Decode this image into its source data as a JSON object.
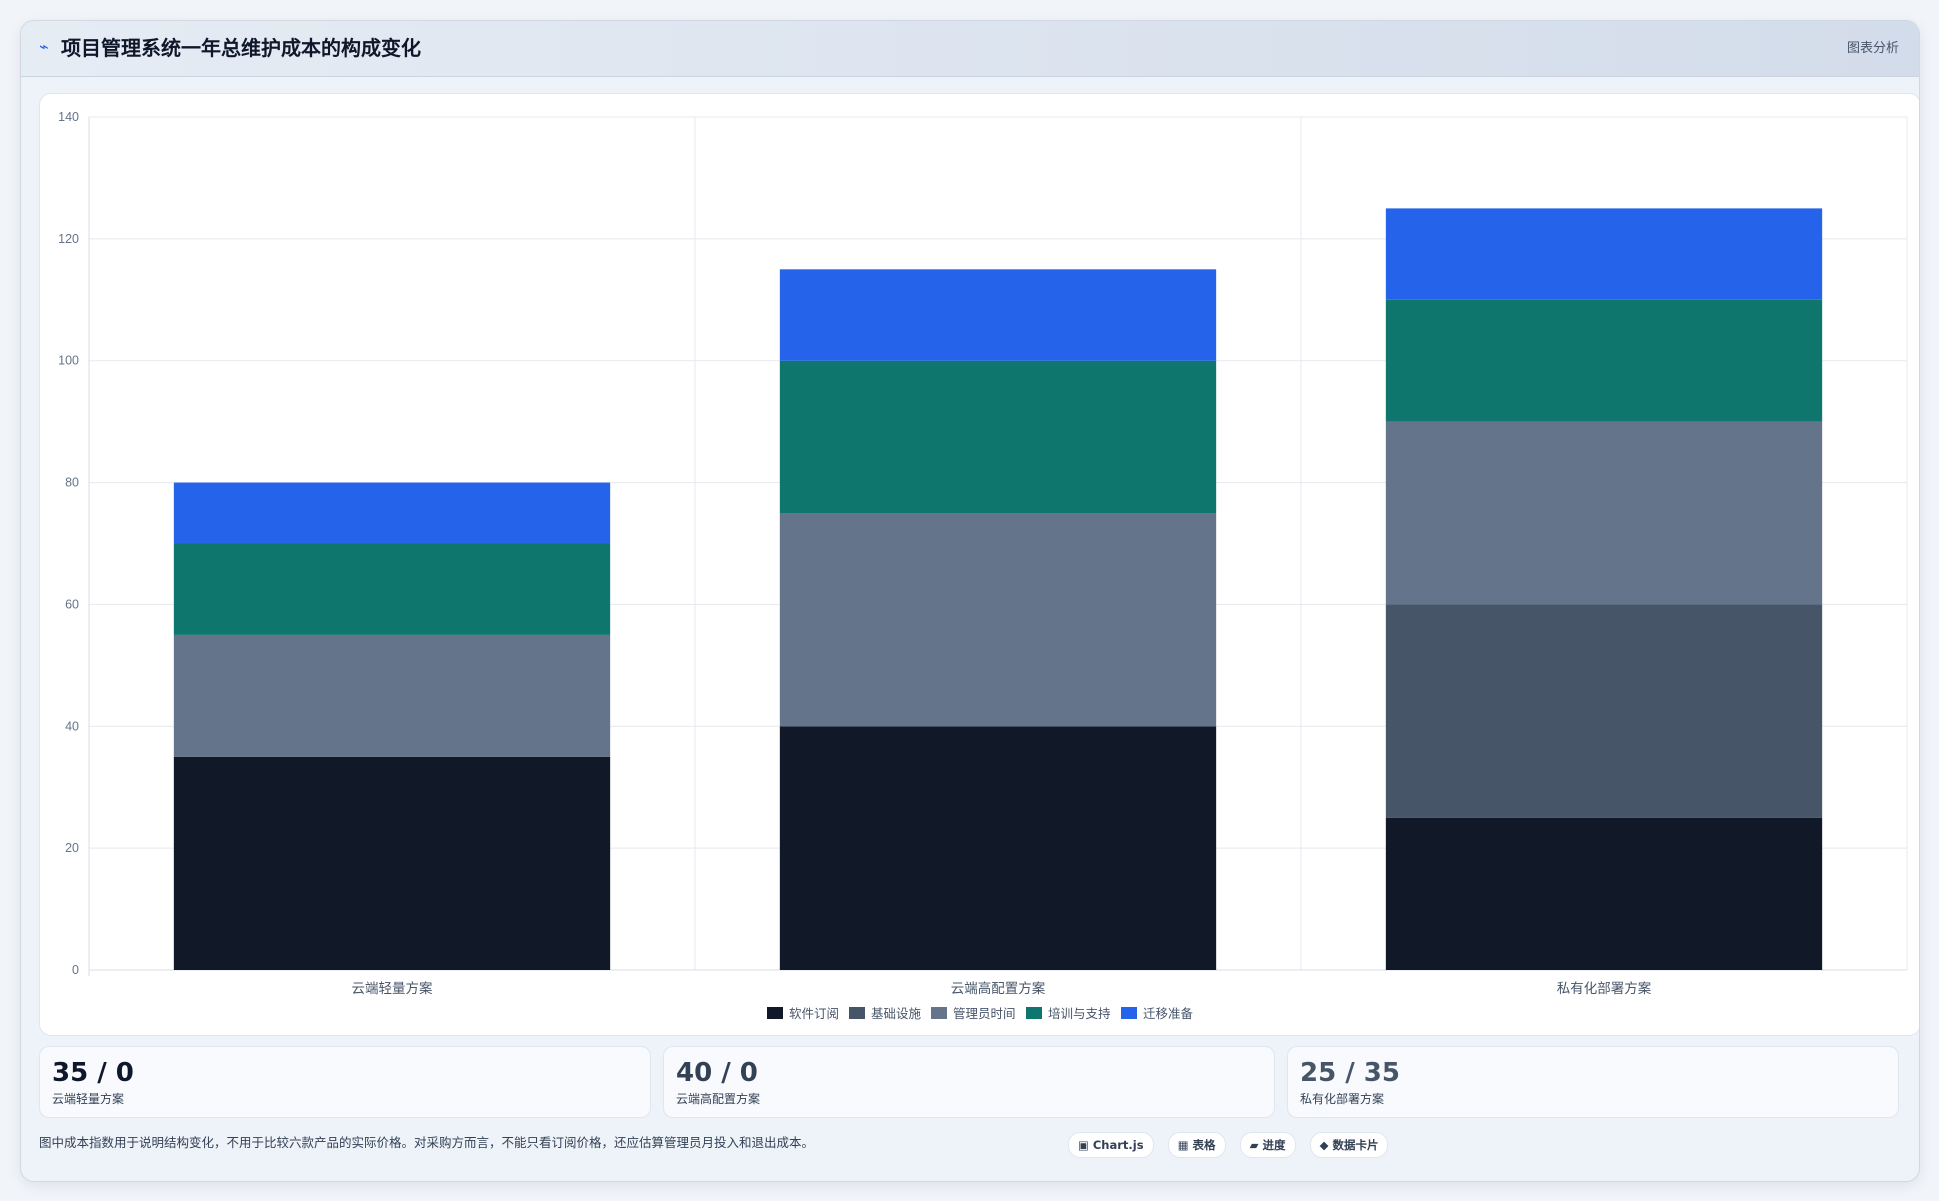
{
  "header": {
    "icon": "chart-icon",
    "title": "项目管理系统一年总维护成本的构成变化",
    "tag": "图表分析"
  },
  "colors": {
    "accent": "#2563eb",
    "series": [
      "#111827",
      "#475569",
      "#64748b",
      "#0f766e",
      "#2563eb"
    ]
  },
  "chart_data": {
    "type": "bar",
    "stacked": true,
    "categories": [
      "云端轻量方案",
      "云端高配置方案",
      "私有化部署方案"
    ],
    "series": [
      {
        "name": "软件订阅",
        "color": "#111827",
        "values": [
          35,
          40,
          25
        ]
      },
      {
        "name": "基础设施",
        "color": "#475569",
        "values": [
          0,
          0,
          35
        ]
      },
      {
        "name": "管理员时间",
        "color": "#64748b",
        "values": [
          20,
          35,
          30
        ]
      },
      {
        "name": "培训与支持",
        "color": "#0f766e",
        "values": [
          15,
          25,
          20
        ]
      },
      {
        "name": "迁移准备",
        "color": "#2563eb",
        "values": [
          10,
          15,
          15
        ]
      }
    ],
    "ylim": [
      0,
      140
    ],
    "yticks": [
      0,
      20,
      40,
      60,
      80,
      100,
      120,
      140
    ],
    "grid": true,
    "legend_position": "bottom"
  },
  "stats": [
    {
      "value": "35 / 0",
      "label": "云端轻量方案",
      "color": "#0f172a"
    },
    {
      "value": "40 / 0",
      "label": "云端高配置方案",
      "color": "#334155"
    },
    {
      "value": "25 / 35",
      "label": "私有化部署方案",
      "color": "#475569"
    }
  ],
  "footer": {
    "note": "图中成本指数用于说明结构变化，不用于比较六款产品的实际价格。对采购方而言，不能只看订阅价格，还应估算管理员月投入和退出成本。",
    "chips": [
      "▣ Chart.js",
      "▦ 表格",
      "▰ 进度",
      "◆ 数据卡片"
    ]
  }
}
